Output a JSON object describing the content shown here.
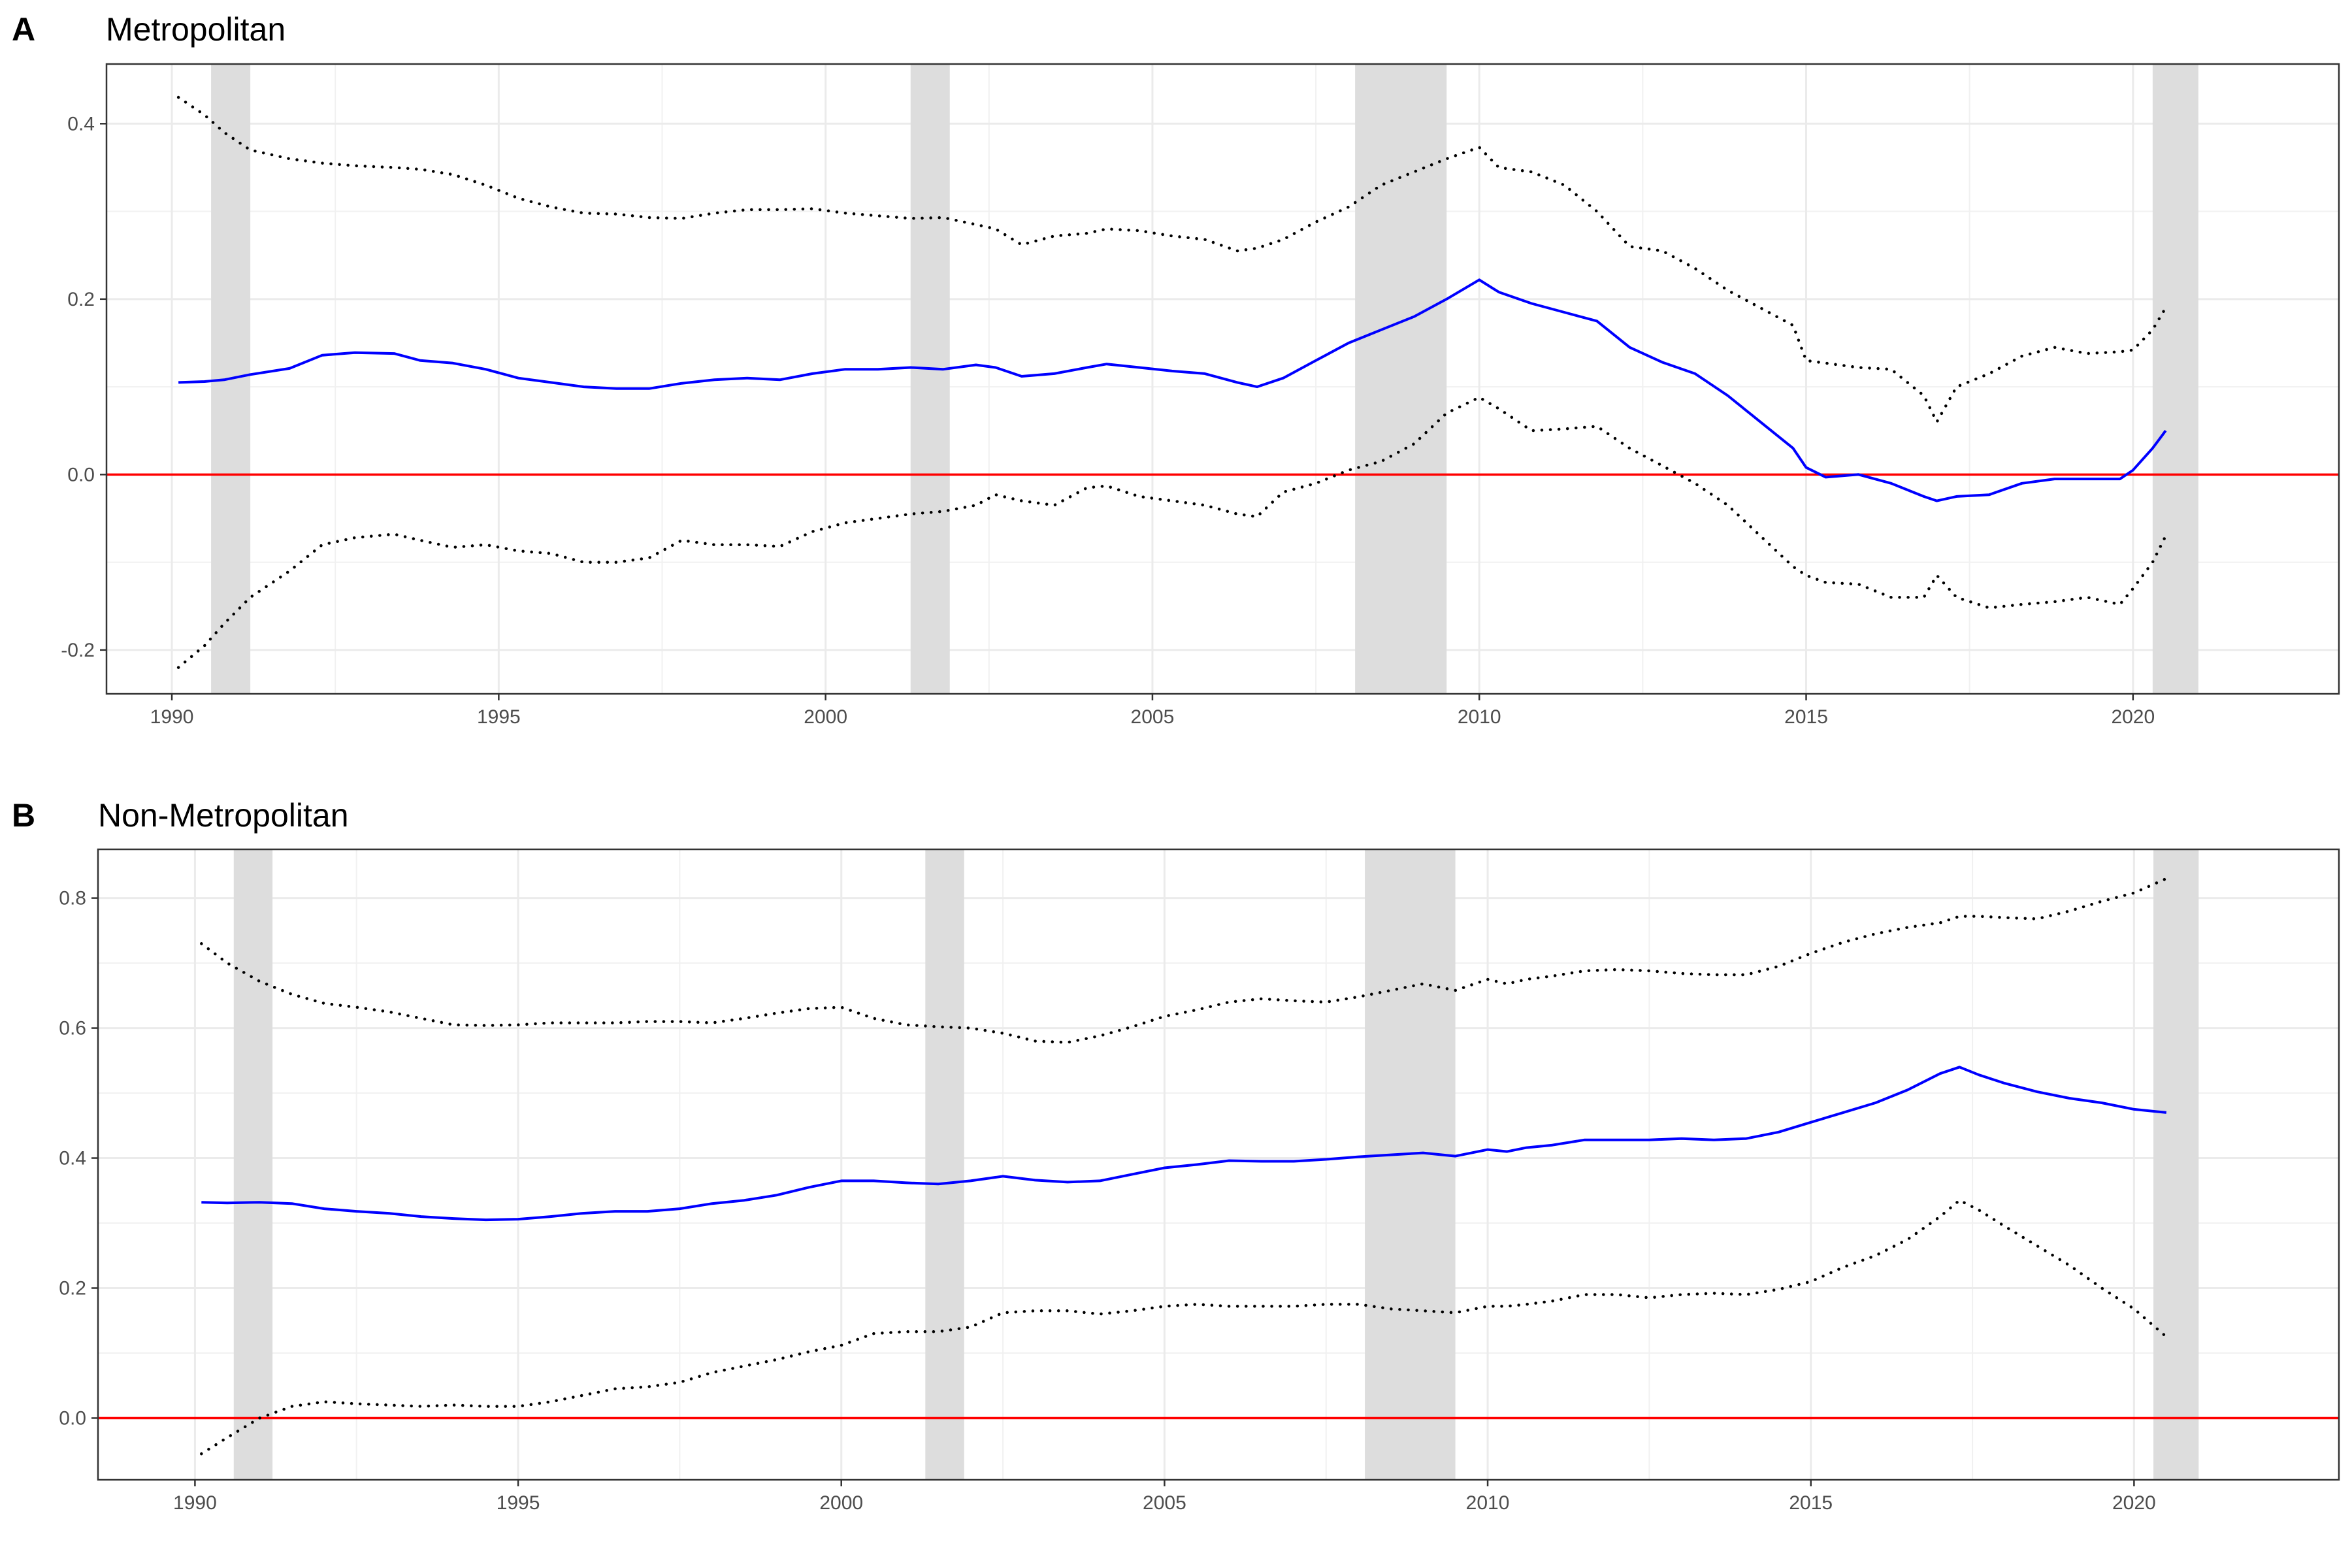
{
  "chart_data": [
    {
      "panel": "A",
      "title": "Metropolitan",
      "type": "line",
      "xlim": [
        1989.0,
        2023.15
      ],
      "ylim": [
        -0.25,
        0.468
      ],
      "x_ticks": [
        1990,
        1995,
        2000,
        2005,
        2010,
        2015,
        2020
      ],
      "y_ticks": [
        -0.2,
        0.0,
        0.2,
        0.4
      ],
      "y_tick_labels": [
        "-0.2",
        "0.0",
        "0.2",
        "0.4"
      ],
      "grid": true,
      "reference_line": {
        "y": 0.0,
        "color": "#ff0000"
      },
      "shaded_periods": [
        [
          1990.6,
          1991.2
        ],
        [
          2001.3,
          2001.9
        ],
        [
          2008.1,
          2009.5
        ],
        [
          2020.3,
          2021.0
        ]
      ],
      "series": [
        {
          "style": "solid",
          "color": "#0000ff",
          "x": [
            1990.1,
            1990.5,
            1990.8,
            1991.2,
            1991.8,
            1992.3,
            1992.8,
            1993.4,
            1993.8,
            1994.3,
            1994.8,
            1995.3,
            1995.8,
            1996.3,
            1996.8,
            1997.3,
            1997.8,
            1998.3,
            1998.8,
            1999.3,
            1999.8,
            2000.3,
            2000.8,
            2001.3,
            2001.8,
            2002.3,
            2002.6,
            2003.0,
            2003.5,
            2004.0,
            2004.3,
            2004.8,
            2005.3,
            2005.8,
            2006.3,
            2006.6,
            2007.0,
            2007.5,
            2008.0,
            2008.5,
            2009.0,
            2009.5,
            2010.0,
            2010.3,
            2010.8,
            2011.3,
            2011.8,
            2012.3,
            2012.8,
            2013.3,
            2013.8,
            2014.3,
            2014.8,
            2015.0,
            2015.3,
            2015.8,
            2016.3,
            2016.8,
            2017.0,
            2017.3,
            2017.8,
            2018.3,
            2018.8,
            2019.3,
            2019.8,
            2020.0,
            2020.3,
            2020.5
          ],
          "y": [
            0.105,
            0.106,
            0.108,
            0.114,
            0.121,
            0.136,
            0.139,
            0.138,
            0.13,
            0.127,
            0.12,
            0.11,
            0.105,
            0.1,
            0.098,
            0.098,
            0.104,
            0.108,
            0.11,
            0.108,
            0.115,
            0.12,
            0.12,
            0.122,
            0.12,
            0.125,
            0.122,
            0.112,
            0.115,
            0.122,
            0.126,
            0.122,
            0.118,
            0.115,
            0.105,
            0.1,
            0.11,
            0.13,
            0.15,
            0.165,
            0.18,
            0.2,
            0.222,
            0.208,
            0.195,
            0.185,
            0.175,
            0.145,
            0.128,
            0.115,
            0.09,
            0.06,
            0.03,
            0.008,
            -0.003,
            0.0,
            -0.01,
            -0.025,
            -0.03,
            -0.025,
            -0.023,
            -0.01,
            -0.005,
            -0.005,
            -0.005,
            0.005,
            0.03,
            0.05
          ]
        },
        {
          "style": "dotted",
          "color": "#000000",
          "x": [
            1990.1,
            1990.5,
            1990.8,
            1991.2,
            1991.8,
            1992.3,
            1992.8,
            1993.4,
            1993.8,
            1994.3,
            1994.8,
            1995.3,
            1995.8,
            1996.3,
            1996.8,
            1997.3,
            1997.8,
            1998.3,
            1998.8,
            1999.3,
            1999.8,
            2000.3,
            2000.8,
            2001.3,
            2001.8,
            2002.3,
            2002.6,
            2003.0,
            2003.5,
            2004.0,
            2004.3,
            2004.8,
            2005.3,
            2005.8,
            2006.3,
            2006.6,
            2007.0,
            2007.5,
            2008.0,
            2008.5,
            2009.0,
            2009.5,
            2010.0,
            2010.3,
            2010.8,
            2011.3,
            2011.8,
            2012.3,
            2012.8,
            2013.3,
            2013.8,
            2014.3,
            2014.8,
            2015.0,
            2015.3,
            2015.8,
            2016.3,
            2016.8,
            2017.0,
            2017.3,
            2017.8,
            2018.3,
            2018.8,
            2019.3,
            2019.8,
            2020.0,
            2020.3,
            2020.5
          ],
          "y": [
            0.43,
            0.41,
            0.39,
            0.37,
            0.36,
            0.355,
            0.352,
            0.35,
            0.348,
            0.342,
            0.33,
            0.315,
            0.305,
            0.298,
            0.297,
            0.293,
            0.292,
            0.298,
            0.302,
            0.302,
            0.303,
            0.298,
            0.295,
            0.292,
            0.293,
            0.285,
            0.28,
            0.262,
            0.272,
            0.275,
            0.28,
            0.278,
            0.272,
            0.268,
            0.255,
            0.258,
            0.268,
            0.288,
            0.305,
            0.33,
            0.345,
            0.36,
            0.373,
            0.35,
            0.345,
            0.33,
            0.3,
            0.26,
            0.255,
            0.235,
            0.21,
            0.19,
            0.17,
            0.13,
            0.127,
            0.122,
            0.12,
            0.09,
            0.06,
            0.1,
            0.115,
            0.135,
            0.145,
            0.138,
            0.14,
            0.142,
            0.165,
            0.19
          ]
        },
        {
          "style": "dotted",
          "color": "#000000",
          "x": [
            1990.1,
            1990.5,
            1990.8,
            1991.2,
            1991.8,
            1992.3,
            1992.8,
            1993.4,
            1993.8,
            1994.3,
            1994.8,
            1995.3,
            1995.8,
            1996.3,
            1996.8,
            1997.3,
            1997.8,
            1998.3,
            1998.8,
            1999.3,
            1999.8,
            2000.3,
            2000.8,
            2001.3,
            2001.8,
            2002.3,
            2002.6,
            2003.0,
            2003.5,
            2004.0,
            2004.3,
            2004.8,
            2005.3,
            2005.8,
            2006.3,
            2006.6,
            2007.0,
            2007.5,
            2008.0,
            2008.5,
            2009.0,
            2009.5,
            2010.0,
            2010.3,
            2010.8,
            2011.3,
            2011.8,
            2012.3,
            2012.8,
            2013.3,
            2013.8,
            2014.3,
            2014.8,
            2015.0,
            2015.3,
            2015.8,
            2016.3,
            2016.8,
            2017.0,
            2017.3,
            2017.8,
            2018.3,
            2018.8,
            2019.3,
            2019.8,
            2020.0,
            2020.3,
            2020.5
          ],
          "y": [
            -0.22,
            -0.195,
            -0.17,
            -0.14,
            -0.11,
            -0.08,
            -0.072,
            -0.068,
            -0.075,
            -0.083,
            -0.08,
            -0.087,
            -0.09,
            -0.1,
            -0.1,
            -0.095,
            -0.075,
            -0.08,
            -0.08,
            -0.082,
            -0.065,
            -0.055,
            -0.05,
            -0.045,
            -0.042,
            -0.035,
            -0.023,
            -0.03,
            -0.035,
            -0.015,
            -0.013,
            -0.025,
            -0.03,
            -0.035,
            -0.045,
            -0.048,
            -0.02,
            -0.01,
            0.005,
            0.015,
            0.035,
            0.07,
            0.088,
            0.075,
            0.05,
            0.052,
            0.055,
            0.03,
            0.01,
            -0.01,
            -0.035,
            -0.07,
            -0.105,
            -0.115,
            -0.123,
            -0.125,
            -0.14,
            -0.14,
            -0.115,
            -0.14,
            -0.152,
            -0.148,
            -0.145,
            -0.14,
            -0.148,
            -0.13,
            -0.1,
            -0.07
          ]
        }
      ]
    },
    {
      "panel": "B",
      "title": "Non-Metropolitan",
      "type": "line",
      "xlim": [
        1988.5,
        2023.17
      ],
      "ylim": [
        -0.095,
        0.875
      ],
      "x_ticks": [
        1990,
        1995,
        2000,
        2005,
        2010,
        2015,
        2020
      ],
      "y_ticks": [
        0.0,
        0.2,
        0.4,
        0.6,
        0.8
      ],
      "y_tick_labels": [
        "0.0",
        "0.2",
        "0.4",
        "0.6",
        "0.8"
      ],
      "grid": true,
      "reference_line": {
        "y": 0.0,
        "color": "#ff0000"
      },
      "shaded_periods": [
        [
          1990.6,
          1991.2
        ],
        [
          2001.3,
          2001.9
        ],
        [
          2008.1,
          2009.5
        ],
        [
          2020.3,
          2021.0
        ]
      ],
      "series": [
        {
          "style": "solid",
          "color": "#0000ff",
          "x": [
            1990.1,
            1990.5,
            1991.0,
            1991.5,
            1992.0,
            1992.5,
            1993.0,
            1993.5,
            1994.0,
            1994.5,
            1995.0,
            1995.5,
            1996.0,
            1996.5,
            1997.0,
            1997.5,
            1998.0,
            1998.5,
            1999.0,
            1999.5,
            2000.0,
            2000.5,
            2001.0,
            2001.5,
            2002.0,
            2002.5,
            2003.0,
            2003.5,
            2004.0,
            2004.5,
            2005.0,
            2005.5,
            2006.0,
            2006.5,
            2007.0,
            2007.5,
            2008.0,
            2008.5,
            2009.0,
            2009.5,
            2010.0,
            2010.3,
            2010.6,
            2011.0,
            2011.5,
            2012.0,
            2012.5,
            2013.0,
            2013.5,
            2014.0,
            2014.5,
            2015.0,
            2015.5,
            2016.0,
            2016.5,
            2017.0,
            2017.3,
            2017.6,
            2018.0,
            2018.5,
            2019.0,
            2019.5,
            2020.0,
            2020.5
          ],
          "y": [
            0.332,
            0.331,
            0.332,
            0.33,
            0.322,
            0.318,
            0.315,
            0.31,
            0.307,
            0.305,
            0.306,
            0.31,
            0.315,
            0.318,
            0.318,
            0.322,
            0.33,
            0.335,
            0.343,
            0.355,
            0.365,
            0.365,
            0.362,
            0.36,
            0.365,
            0.372,
            0.366,
            0.363,
            0.365,
            0.375,
            0.385,
            0.39,
            0.396,
            0.395,
            0.395,
            0.398,
            0.402,
            0.405,
            0.408,
            0.403,
            0.413,
            0.41,
            0.416,
            0.42,
            0.428,
            0.428,
            0.428,
            0.43,
            0.428,
            0.43,
            0.44,
            0.455,
            0.47,
            0.485,
            0.505,
            0.53,
            0.54,
            0.528,
            0.515,
            0.502,
            0.492,
            0.485,
            0.475,
            0.47
          ]
        },
        {
          "style": "dotted",
          "color": "#000000",
          "x": [
            1990.1,
            1990.5,
            1991.0,
            1991.5,
            1992.0,
            1992.5,
            1993.0,
            1993.5,
            1994.0,
            1994.5,
            1995.0,
            1995.5,
            1996.0,
            1996.5,
            1997.0,
            1997.5,
            1998.0,
            1998.5,
            1999.0,
            1999.5,
            2000.0,
            2000.5,
            2001.0,
            2001.5,
            2002.0,
            2002.5,
            2003.0,
            2003.5,
            2004.0,
            2004.5,
            2005.0,
            2005.5,
            2006.0,
            2006.5,
            2007.0,
            2007.5,
            2008.0,
            2008.5,
            2009.0,
            2009.5,
            2010.0,
            2010.3,
            2010.6,
            2011.0,
            2011.5,
            2012.0,
            2012.5,
            2013.0,
            2013.5,
            2014.0,
            2014.5,
            2015.0,
            2015.5,
            2016.0,
            2016.5,
            2017.0,
            2017.3,
            2017.6,
            2018.0,
            2018.5,
            2019.0,
            2019.5,
            2020.0,
            2020.5
          ],
          "y": [
            0.73,
            0.7,
            0.672,
            0.652,
            0.638,
            0.632,
            0.625,
            0.615,
            0.605,
            0.604,
            0.605,
            0.608,
            0.608,
            0.608,
            0.61,
            0.61,
            0.608,
            0.615,
            0.623,
            0.63,
            0.632,
            0.615,
            0.605,
            0.602,
            0.6,
            0.592,
            0.58,
            0.578,
            0.588,
            0.602,
            0.618,
            0.628,
            0.64,
            0.645,
            0.642,
            0.64,
            0.648,
            0.658,
            0.668,
            0.658,
            0.675,
            0.668,
            0.675,
            0.68,
            0.688,
            0.69,
            0.688,
            0.684,
            0.682,
            0.682,
            0.695,
            0.715,
            0.732,
            0.745,
            0.755,
            0.762,
            0.772,
            0.772,
            0.77,
            0.768,
            0.78,
            0.795,
            0.808,
            0.83
          ]
        },
        {
          "style": "dotted",
          "color": "#000000",
          "x": [
            1990.1,
            1990.5,
            1991.0,
            1991.5,
            1992.0,
            1992.5,
            1993.0,
            1993.5,
            1994.0,
            1994.5,
            1995.0,
            1995.5,
            1996.0,
            1996.5,
            1997.0,
            1997.5,
            1998.0,
            1998.5,
            1999.0,
            1999.5,
            2000.0,
            2000.5,
            2001.0,
            2001.5,
            2002.0,
            2002.5,
            2003.0,
            2003.5,
            2004.0,
            2004.5,
            2005.0,
            2005.5,
            2006.0,
            2006.5,
            2007.0,
            2007.5,
            2008.0,
            2008.5,
            2009.0,
            2009.5,
            2010.0,
            2010.3,
            2010.6,
            2011.0,
            2011.5,
            2012.0,
            2012.5,
            2013.0,
            2013.5,
            2014.0,
            2014.5,
            2015.0,
            2015.5,
            2016.0,
            2016.5,
            2017.0,
            2017.3,
            2017.6,
            2018.0,
            2018.5,
            2019.0,
            2019.5,
            2020.0,
            2020.5
          ],
          "y": [
            -0.055,
            -0.03,
            0.0,
            0.018,
            0.025,
            0.022,
            0.02,
            0.018,
            0.02,
            0.018,
            0.018,
            0.025,
            0.035,
            0.045,
            0.048,
            0.055,
            0.07,
            0.08,
            0.09,
            0.102,
            0.112,
            0.13,
            0.133,
            0.133,
            0.14,
            0.162,
            0.165,
            0.165,
            0.16,
            0.165,
            0.172,
            0.175,
            0.172,
            0.172,
            0.172,
            0.175,
            0.175,
            0.168,
            0.165,
            0.162,
            0.172,
            0.172,
            0.175,
            0.18,
            0.19,
            0.19,
            0.185,
            0.19,
            0.192,
            0.19,
            0.198,
            0.21,
            0.232,
            0.25,
            0.275,
            0.31,
            0.335,
            0.32,
            0.295,
            0.265,
            0.235,
            0.2,
            0.168,
            0.125
          ]
        }
      ]
    }
  ]
}
